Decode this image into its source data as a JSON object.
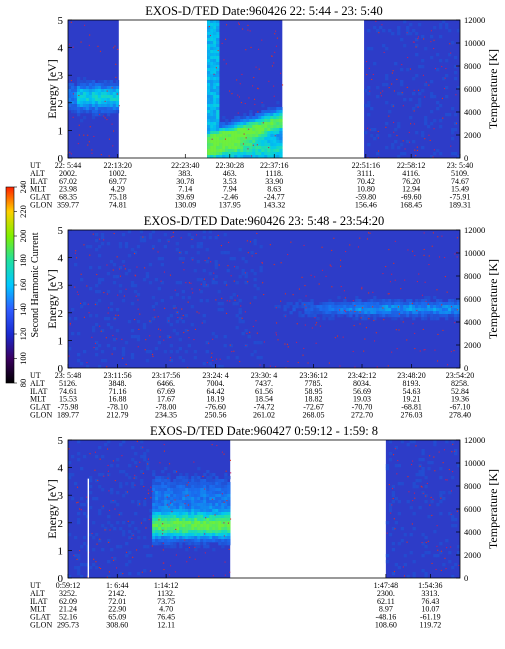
{
  "colorbar": {
    "label": "Second Harmonic Current",
    "ticks": [
      "80",
      "100",
      "120",
      "140",
      "160",
      "180",
      "200",
      "220",
      "240"
    ],
    "colors": [
      "#000000",
      "#3a0060",
      "#1a2ad0",
      "#2f5cff",
      "#00c8ff",
      "#20e0a0",
      "#80f000",
      "#ffd000",
      "#ff2000"
    ]
  },
  "row_labels": [
    "UT",
    "ALT",
    "ILAT",
    "MLT",
    "GLAT",
    "GLON"
  ],
  "chart_data": [
    {
      "type": "heatmap",
      "title": "EXOS-D/TED   Date:960426  22: 5:44 - 23: 5:40",
      "ylabel": "Energy [eV]",
      "y2label": "Temperature [K]",
      "ylim": [
        0,
        5
      ],
      "y2lim": [
        0,
        12000
      ],
      "yticks": [
        "0",
        "1",
        "2",
        "3",
        "4",
        "5"
      ],
      "y2ticks": [
        "0",
        "2000",
        "4000",
        "6000",
        "8000",
        "10000",
        "12000"
      ],
      "x_range_min": [
        5.733,
        65.667
      ],
      "data_segments_min": [
        [
          5.733,
          13.5
        ],
        [
          27.0,
          38.5
        ],
        [
          51.0,
          65.667
        ]
      ],
      "table_x_min": [
        5.733,
        13.333,
        23.667,
        30.467,
        37.267,
        51.267,
        58.2,
        65.667
      ],
      "table": [
        [
          "22: 5:44",
          "22:13:20",
          "22:23:40",
          "22:30:28",
          "22:37:16",
          "22:51:16",
          "22:58:12",
          "23: 5:40"
        ],
        [
          "2002.",
          "1002.",
          "383.",
          "463.",
          "1118.",
          "3111.",
          "4116.",
          "5109."
        ],
        [
          "67.02",
          "69.77",
          "30.78",
          "3.53",
          "33.90",
          "70.42",
          "76.20",
          "74.67"
        ],
        [
          "23.98",
          "4.29",
          "7.14",
          "7.94",
          "8.63",
          "10.80",
          "12.94",
          "15.49"
        ],
        [
          "68.35",
          "75.18",
          "39.69",
          "-2.46",
          "-24.77",
          "-59.80",
          "-69.60",
          "-75.91"
        ],
        [
          "359.77",
          "74.81",
          "130.09",
          "137.95",
          "143.32",
          "156.46",
          "168.45",
          "189.31"
        ]
      ]
    },
    {
      "type": "heatmap",
      "title": "EXOS-D/TED   Date:960426  23: 5:48 - 23:54:20",
      "ylabel": "Energy [eV]",
      "y2label": "Temperature [K]",
      "ylim": [
        0,
        5
      ],
      "y2lim": [
        0,
        12000
      ],
      "yticks": [
        "0",
        "1",
        "2",
        "3",
        "4",
        "5"
      ],
      "y2ticks": [
        "0",
        "2000",
        "4000",
        "6000",
        "8000",
        "10000",
        "12000"
      ],
      "x_range_min": [
        65.8,
        114.333
      ],
      "data_segments_min": [
        [
          65.8,
          114.333
        ]
      ],
      "table_x_min": [
        65.8,
        71.933,
        77.933,
        84.067,
        90.067,
        96.2,
        102.2,
        108.333,
        114.333
      ],
      "table": [
        [
          "23: 5:48",
          "23:11:56",
          "23:17:56",
          "23:24: 4",
          "23:30: 4",
          "23:36:12",
          "23:42:12",
          "23:48:20",
          "23:54:20"
        ],
        [
          "5126.",
          "3848.",
          "6466.",
          "7004.",
          "7437.",
          "7785.",
          "8034.",
          "8193.",
          "8258."
        ],
        [
          "74.61",
          "71.16",
          "67.69",
          "64.42",
          "61.56",
          "58.95",
          "56.69",
          "54.63",
          "52.84"
        ],
        [
          "15.53",
          "16.88",
          "17.67",
          "18.19",
          "18.54",
          "18.82",
          "19.03",
          "19.21",
          "19.36"
        ],
        [
          "-75.98",
          "-78.10",
          "-78.00",
          "-76.60",
          "-74.72",
          "-72.67",
          "-70.70",
          "-68.81",
          "-67.10"
        ],
        [
          "189.77",
          "212.79",
          "234.35",
          "250.56",
          "261.02",
          "268.05",
          "272.70",
          "276.03",
          "278.40"
        ]
      ]
    },
    {
      "type": "heatmap",
      "title": "EXOS-D/TED   Date:960427  0:59:12 - 1:59: 8",
      "ylabel": "Energy [eV]",
      "y2label": "Temperature [K]",
      "ylim": [
        0,
        5
      ],
      "y2lim": [
        0,
        12000
      ],
      "yticks": [
        "0",
        "1",
        "2",
        "3",
        "4",
        "5"
      ],
      "y2ticks": [
        "0",
        "2000",
        "4000",
        "6000",
        "8000",
        "10000",
        "12000"
      ],
      "x_range_min": [
        59.2,
        119.133
      ],
      "data_segments_min": [
        [
          59.2,
          84.0
        ],
        [
          107.8,
          119.133
        ]
      ],
      "table_x_min": [
        59.2,
        66.733,
        74.2,
        107.8,
        114.6
      ],
      "table": [
        [
          "0:59:12",
          "1: 6:44",
          "1:14:12",
          "1:47:48",
          "1:54:36"
        ],
        [
          "3252.",
          "2142.",
          "1132.",
          "2300.",
          "3313."
        ],
        [
          "62.09",
          "72.01",
          "73.75",
          "62.11",
          "76.43"
        ],
        [
          "21.24",
          "22.90",
          "4.70",
          "8.97",
          "10.07"
        ],
        [
          "52.16",
          "65.09",
          "76.45",
          "-48.16",
          "-61.19"
        ],
        [
          "295.73",
          "308.60",
          "12.11",
          "108.60",
          "119.72"
        ]
      ]
    }
  ]
}
